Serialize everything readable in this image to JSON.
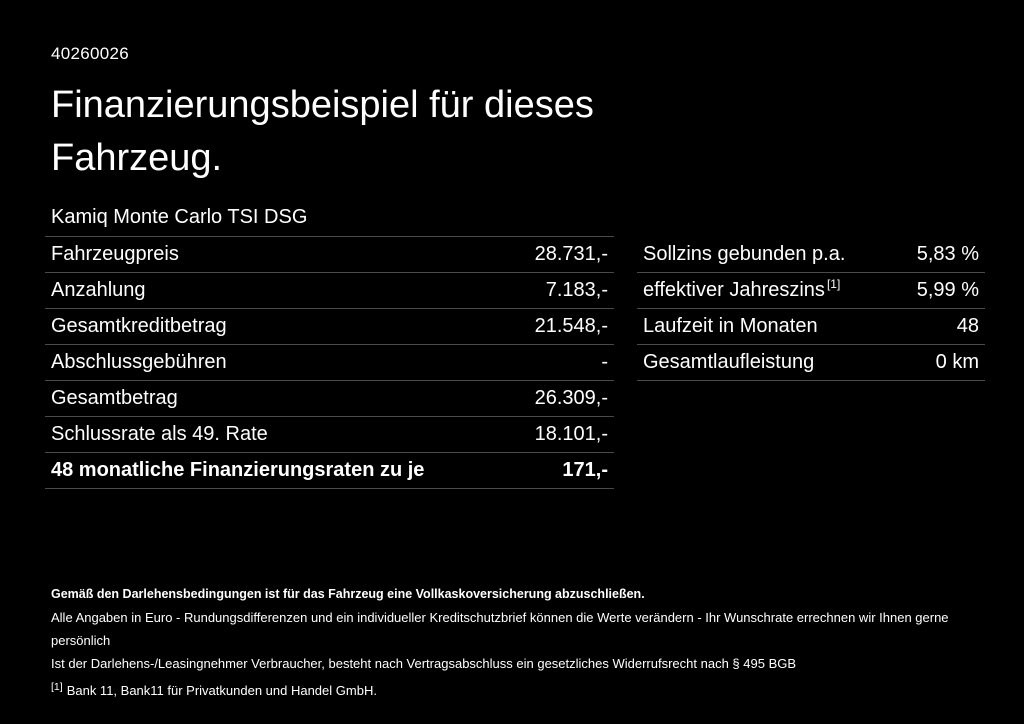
{
  "page": {
    "background": "#000000",
    "text_color": "#ffffff",
    "divider_color": "#4a4a4a"
  },
  "header": {
    "id": "40260026",
    "title": "Finanzierungsbeispiel für dieses\nFahrzeug.",
    "subtitle": "Kamiq Monte Carlo TSI DSG"
  },
  "left_table": {
    "rows": [
      {
        "label": "Fahrzeugpreis",
        "value": "28.731,-"
      },
      {
        "label": "Anzahlung",
        "value": "7.183,-"
      },
      {
        "label": "Gesamtkreditbetrag",
        "value": "21.548,-"
      },
      {
        "label": "Abschlussgebühren",
        "value": "-"
      },
      {
        "label": "Gesamtbetrag",
        "value": "26.309,-"
      },
      {
        "label": "Schlussrate als 49. Rate",
        "value": "18.101,-"
      },
      {
        "label": "48 monatliche Finanzierungsraten zu je",
        "value": "171,-"
      }
    ]
  },
  "right_table": {
    "rows": [
      {
        "label": "Sollzins gebunden p.a.",
        "value": "5,83 %"
      },
      {
        "label": "effektiver Jahreszins",
        "sup": "[1]",
        "value": "5,99 %"
      },
      {
        "label": "Laufzeit in Monaten",
        "value": "48"
      },
      {
        "label": "Gesamtlaufleistung",
        "value": "0 km"
      }
    ]
  },
  "footer": {
    "line1": "Gemäß den Darlehensbedingungen ist für das Fahrzeug eine Vollkaskoversicherung abzuschließen.",
    "line2": "Alle Angaben in Euro - Rundungsdifferenzen und ein individueller Kreditschutzbrief können die Werte verändern - Ihr Wunschrate errechnen wir Ihnen gerne persönlich",
    "line3": "Ist der Darlehens-/Leasingnehmer Verbraucher, besteht nach Vertragsabschluss ein gesetzliches Widerrufsrecht nach § 495 BGB",
    "footnote_marker": "[1]",
    "footnote_text": "Bank 11, Bank11 für Privatkunden und Handel GmbH."
  }
}
